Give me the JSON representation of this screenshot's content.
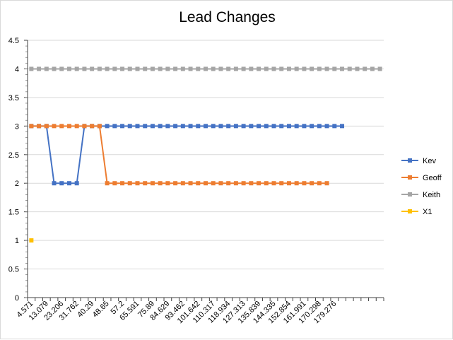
{
  "chart_data": {
    "type": "line",
    "title": "Lead Changes",
    "xlabel": "",
    "ylabel": "",
    "ylim": [
      0,
      4.5
    ],
    "ytick_step": 0.5,
    "y_ticks": [
      "0",
      "0.5",
      "1",
      "1.5",
      "2",
      "2.5",
      "3",
      "3.5",
      "4",
      "4.5"
    ],
    "x_tick_labels": [
      "4.571",
      "13.079",
      "23.206",
      "31.762",
      "40.29",
      "48.65",
      "57.2",
      "65.591",
      "75.89",
      "84.629",
      "93.462",
      "101.642",
      "110.317",
      "118.934",
      "127.313",
      "135.839",
      "144.335",
      "152.854",
      "161.991",
      "170.298",
      "179.276"
    ],
    "num_categories": 47,
    "grid": true,
    "legend_position": "right",
    "series": [
      {
        "name": "Kev",
        "color": "#4472C4",
        "values": [
          3,
          3,
          3,
          2,
          2,
          2,
          2,
          3,
          3,
          3,
          3,
          3,
          3,
          3,
          3,
          3,
          3,
          3,
          3,
          3,
          3,
          3,
          3,
          3,
          3,
          3,
          3,
          3,
          3,
          3,
          3,
          3,
          3,
          3,
          3,
          3,
          3,
          3,
          3,
          3,
          3,
          3,
          null,
          null,
          null,
          null,
          null
        ]
      },
      {
        "name": "Geoff",
        "color": "#ED7D31",
        "values": [
          3,
          3,
          3,
          3,
          3,
          3,
          3,
          3,
          3,
          3,
          2,
          2,
          2,
          2,
          2,
          2,
          2,
          2,
          2,
          2,
          2,
          2,
          2,
          2,
          2,
          2,
          2,
          2,
          2,
          2,
          2,
          2,
          2,
          2,
          2,
          2,
          2,
          2,
          2,
          2,
          null,
          null,
          null,
          null,
          null,
          null,
          null
        ]
      },
      {
        "name": "Keith",
        "color": "#A5A5A5",
        "values": [
          4,
          4,
          4,
          4,
          4,
          4,
          4,
          4,
          4,
          4,
          4,
          4,
          4,
          4,
          4,
          4,
          4,
          4,
          4,
          4,
          4,
          4,
          4,
          4,
          4,
          4,
          4,
          4,
          4,
          4,
          4,
          4,
          4,
          4,
          4,
          4,
          4,
          4,
          4,
          4,
          4,
          4,
          4,
          4,
          4,
          4,
          4
        ]
      },
      {
        "name": "X1",
        "color": "#FFC000",
        "values": [
          1,
          null,
          null,
          null,
          null,
          null,
          null,
          null,
          null,
          null,
          null,
          null,
          null,
          null,
          null,
          null,
          null,
          null,
          null,
          null,
          null,
          null,
          null,
          null,
          null,
          null,
          null,
          null,
          null,
          null,
          null,
          null,
          null,
          null,
          null,
          null,
          null,
          null,
          null,
          null,
          null,
          null,
          null,
          null,
          null,
          null,
          null
        ]
      }
    ]
  }
}
